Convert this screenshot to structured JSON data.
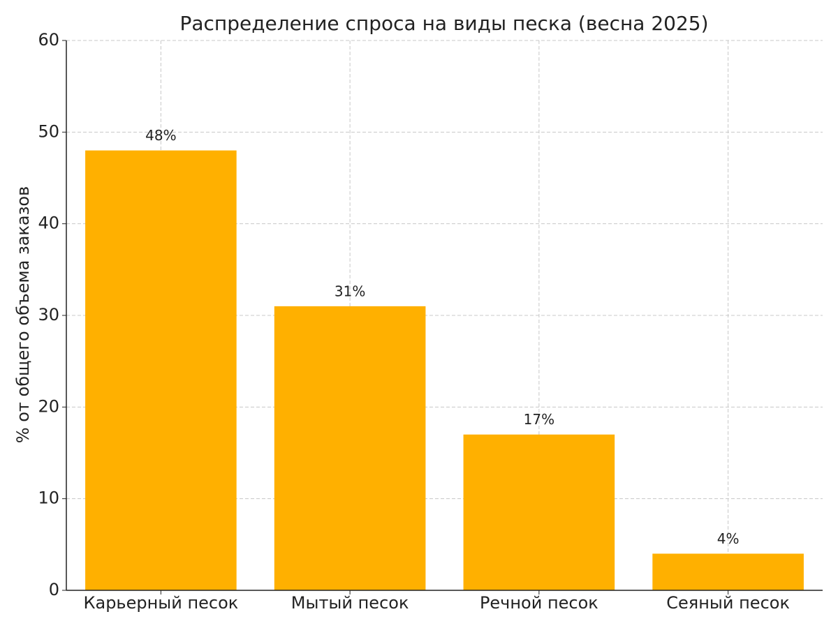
{
  "chart_data": {
    "type": "bar",
    "title": "Распределение спроса на виды песка (весна 2025)",
    "y_label": "% от общего объема заказов",
    "categories": [
      "Карьерный песок",
      "Мытый песок",
      "Речной песок",
      "Сеяный песок"
    ],
    "values": [
      48,
      31,
      17,
      4
    ],
    "value_labels": [
      "48%",
      "31%",
      "17%",
      "4%"
    ],
    "color": "#ffb000",
    "ylim": [
      0,
      60
    ],
    "yticks": [
      0,
      10,
      20,
      30,
      40,
      50,
      60
    ],
    "grid": true
  }
}
